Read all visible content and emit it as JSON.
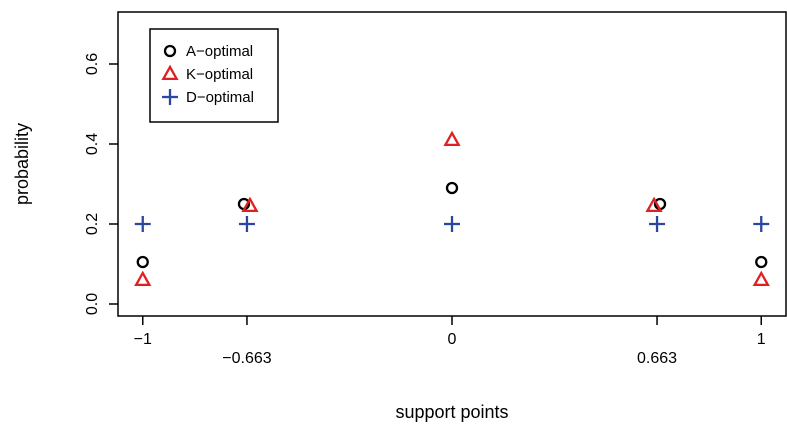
{
  "chart_data": {
    "type": "scatter",
    "xlabel": "support points",
    "ylabel": "probability",
    "xlim": [
      -1.08,
      1.08
    ],
    "ylim": [
      -0.03,
      0.73
    ],
    "x_ticks": [
      -1,
      -0.663,
      0,
      0.663,
      1
    ],
    "x_tick_labels": [
      "−1",
      "−0.663",
      "0",
      "0.663",
      "1"
    ],
    "y_ticks": [
      0.0,
      0.2,
      0.4,
      0.6
    ],
    "y_tick_labels": [
      "0.0",
      "0.2",
      "0.4",
      "0.6"
    ],
    "legend_position": "top-left",
    "series": [
      {
        "name": "A−optimal",
        "marker": "circle",
        "color": "#000000",
        "points": [
          {
            "x": -1,
            "y": 0.105
          },
          {
            "x": -0.663,
            "y": 0.25
          },
          {
            "x": 0,
            "y": 0.29
          },
          {
            "x": 0.663,
            "y": 0.25
          },
          {
            "x": 1,
            "y": 0.105
          }
        ]
      },
      {
        "name": "K−optimal",
        "marker": "triangle",
        "color": "#e02020",
        "points": [
          {
            "x": -1,
            "y": 0.06
          },
          {
            "x": -0.663,
            "y": 0.245
          },
          {
            "x": 0,
            "y": 0.41
          },
          {
            "x": 0.663,
            "y": 0.245
          },
          {
            "x": 1,
            "y": 0.06
          }
        ]
      },
      {
        "name": "D−optimal",
        "marker": "plus",
        "color": "#2b46a0",
        "points": [
          {
            "x": -1,
            "y": 0.2
          },
          {
            "x": -0.663,
            "y": 0.2
          },
          {
            "x": 0,
            "y": 0.2
          },
          {
            "x": 0.663,
            "y": 0.2
          },
          {
            "x": 1,
            "y": 0.2
          }
        ]
      }
    ]
  }
}
